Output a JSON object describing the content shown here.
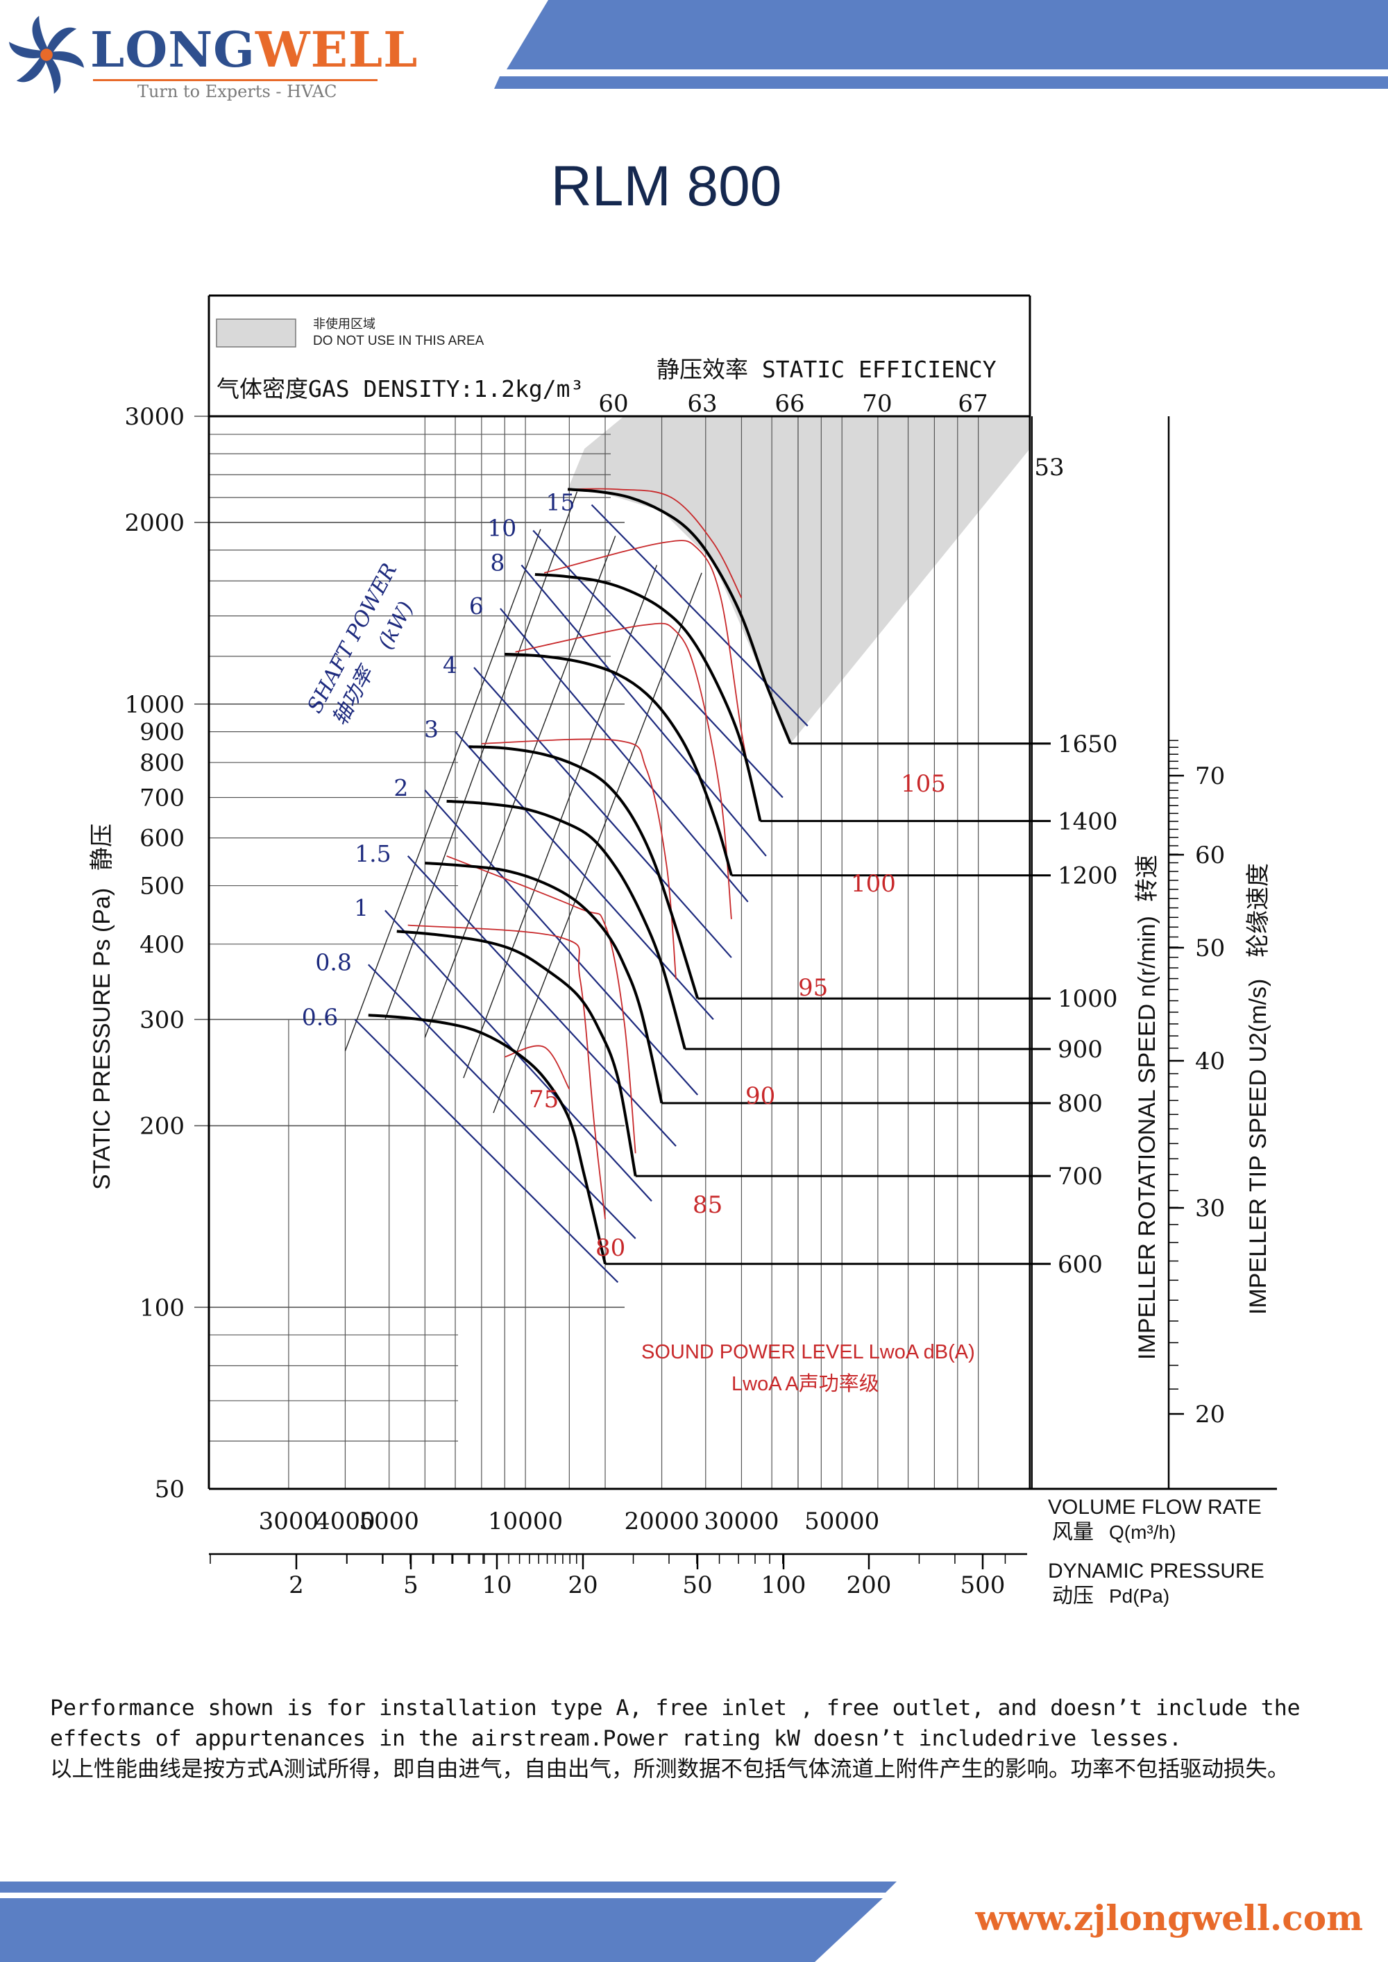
{
  "brand": {
    "name_part1": "LONG",
    "name_part2": "WELL",
    "tagline": "Turn to Experts - HVAC",
    "website": "www.zjlongwell.com",
    "primary_color": "#2e4f8e",
    "accent_color": "#e86a2a",
    "band_color": "#5b7fc4"
  },
  "page_title": "RLM 800",
  "legend": {
    "area_label_cn": "非使用区域",
    "area_label_en": "DO NOT USE IN THIS AREA",
    "gas_density": "气体密度GAS DENSITY:1.2kg/m³"
  },
  "footnote": {
    "en": "Performance shown is for installation type A, free inlet , free outlet, and doesn’t include the effects of appurtenances in the airstream.Power rating kW doesn’t includedrive lesses.",
    "cn": "以上性能曲线是按方式A测试所得，即自由进气，自由出气，所测数据不包括气体流道上附件产生的影响。功率不包括驱动损失。"
  },
  "chart_data": {
    "type": "line",
    "x_scale": "log",
    "y_scale": "log",
    "xlim": [
      2000,
      130000
    ],
    "ylim": [
      50,
      3000
    ],
    "xlabel": "VOLUME FLOW RATE",
    "xlabel_cn": "风量",
    "xlabel_unit": "Q(m³/h)",
    "x_ticks": [
      3000,
      4000,
      5000,
      10000,
      20000,
      30000,
      50000
    ],
    "ylabel": "STATIC PRESSURE Ps (Pa)",
    "ylabel_cn": "静压",
    "y_ticks": [
      50,
      100,
      200,
      300,
      400,
      500,
      600,
      700,
      800,
      900,
      1000,
      2000,
      3000
    ],
    "dynamic_pressure": {
      "label": "DYNAMIC PRESSURE",
      "label_cn": "动压",
      "unit": "Pd(Pa)",
      "ticks": [
        2,
        5,
        10,
        20,
        50,
        100,
        200,
        500
      ]
    },
    "static_efficiency": {
      "label": "静压效率 STATIC EFFICIENCY",
      "values": [
        60,
        63,
        66,
        70,
        67,
        53
      ]
    },
    "shaft_power": {
      "label": "SHAFT POWER",
      "label_cn": "轴功率",
      "unit": "(kW)",
      "values": [
        0.6,
        0.8,
        1,
        1.5,
        2,
        3,
        4,
        6,
        8,
        10,
        15
      ]
    },
    "speed_axis": {
      "label": "IMPELLER ROTATIONAL SPEED n(r/min)",
      "label_cn": "转速",
      "values": [
        1650,
        1400,
        1200,
        1000,
        900,
        800,
        700,
        600
      ]
    },
    "tip_speed_axis": {
      "label": "IMPELLER TIP SPEED U2(m/s)",
      "label_cn": "轮缘速度",
      "ticks": [
        70,
        60,
        50,
        40,
        30,
        20
      ]
    },
    "sound_power": {
      "label": "SOUND POWER LEVEL LwoA dB(A)",
      "label_cn": "LwoA  A声功率级",
      "values": [
        80,
        85,
        75,
        90,
        95,
        100,
        105
      ]
    },
    "series": [
      {
        "rpm": 1650,
        "points": [
          [
            12400,
            2270
          ],
          [
            14500,
            2250
          ],
          [
            17000,
            2200
          ],
          [
            20000,
            2090
          ],
          [
            23000,
            1940
          ],
          [
            26000,
            1720
          ],
          [
            30000,
            1400
          ],
          [
            34000,
            1080
          ],
          [
            38500,
            860
          ]
        ]
      },
      {
        "rpm": 1400,
        "points": [
          [
            10500,
            1640
          ],
          [
            12000,
            1630
          ],
          [
            14500,
            1600
          ],
          [
            17000,
            1540
          ],
          [
            20000,
            1440
          ],
          [
            23000,
            1300
          ],
          [
            26500,
            1080
          ],
          [
            30000,
            860
          ],
          [
            33000,
            640
          ]
        ]
      },
      {
        "rpm": 1200,
        "points": [
          [
            9000,
            1210
          ],
          [
            11000,
            1200
          ],
          [
            13500,
            1170
          ],
          [
            16000,
            1120
          ],
          [
            18500,
            1040
          ],
          [
            21000,
            930
          ],
          [
            23500,
            800
          ],
          [
            26500,
            630
          ],
          [
            28500,
            520
          ]
        ]
      },
      {
        "rpm": 1000,
        "points": [
          [
            7500,
            850
          ],
          [
            9000,
            845
          ],
          [
            11000,
            825
          ],
          [
            13000,
            790
          ],
          [
            15000,
            740
          ],
          [
            17000,
            660
          ],
          [
            19000,
            560
          ],
          [
            21000,
            450
          ],
          [
            24000,
            325
          ]
        ]
      },
      {
        "rpm": 900,
        "points": [
          [
            6700,
            690
          ],
          [
            8000,
            685
          ],
          [
            10000,
            670
          ],
          [
            12000,
            640
          ],
          [
            14000,
            600
          ],
          [
            16000,
            530
          ],
          [
            18000,
            450
          ],
          [
            20000,
            370
          ],
          [
            22500,
            268
          ]
        ]
      },
      {
        "rpm": 800,
        "points": [
          [
            6000,
            545
          ],
          [
            7200,
            540
          ],
          [
            9000,
            530
          ],
          [
            11000,
            505
          ],
          [
            13000,
            470
          ],
          [
            15000,
            420
          ],
          [
            16500,
            370
          ],
          [
            18000,
            310
          ],
          [
            20000,
            218
          ]
        ]
      },
      {
        "rpm": 700,
        "points": [
          [
            5200,
            420
          ],
          [
            6300,
            415
          ],
          [
            8000,
            405
          ],
          [
            9500,
            390
          ],
          [
            11000,
            365
          ],
          [
            13000,
            330
          ],
          [
            14500,
            290
          ],
          [
            16000,
            240
          ],
          [
            17500,
            165
          ]
        ]
      },
      {
        "rpm": 600,
        "points": [
          [
            4500,
            305
          ],
          [
            5400,
            302
          ],
          [
            6800,
            295
          ],
          [
            8000,
            285
          ],
          [
            9500,
            265
          ],
          [
            11000,
            240
          ],
          [
            12500,
            205
          ],
          [
            13500,
            165
          ],
          [
            15000,
            118
          ]
        ]
      }
    ],
    "system_lines": [
      {
        "points": [
          [
            4000,
            266
          ],
          [
            10800,
            1950
          ]
        ]
      },
      {
        "points": [
          [
            4900,
            300
          ],
          [
            13000,
            2250
          ]
        ]
      },
      {
        "points": [
          [
            6000,
            280
          ],
          [
            15800,
            1900
          ]
        ]
      },
      {
        "points": [
          [
            7300,
            240
          ],
          [
            19500,
            1700
          ]
        ]
      },
      {
        "points": [
          [
            8500,
            210
          ],
          [
            24500,
            1650
          ]
        ]
      }
    ],
    "power_lines": [
      {
        "kw": 15,
        "points": [
          [
            14000,
            2140
          ],
          [
            42000,
            920
          ]
        ]
      },
      {
        "kw": 10,
        "points": [
          [
            10400,
            1940
          ],
          [
            37000,
            700
          ]
        ]
      },
      {
        "kw": 8,
        "points": [
          [
            9800,
            1700
          ],
          [
            34000,
            560
          ]
        ]
      },
      {
        "kw": 6,
        "points": [
          [
            8800,
            1440
          ],
          [
            31000,
            470
          ]
        ]
      },
      {
        "kw": 4,
        "points": [
          [
            7700,
            1150
          ],
          [
            28500,
            380
          ]
        ]
      },
      {
        "kw": 3,
        "points": [
          [
            7000,
            900
          ],
          [
            26000,
            300
          ]
        ]
      },
      {
        "kw": 2,
        "points": [
          [
            6000,
            720
          ],
          [
            24000,
            225
          ]
        ]
      },
      {
        "kw": 1.5,
        "points": [
          [
            5500,
            560
          ],
          [
            21500,
            185
          ]
        ]
      },
      {
        "kw": 1,
        "points": [
          [
            4900,
            455
          ],
          [
            19000,
            150
          ]
        ]
      },
      {
        "kw": 0.8,
        "points": [
          [
            4500,
            370
          ],
          [
            17500,
            130
          ]
        ]
      },
      {
        "kw": 0.6,
        "points": [
          [
            4200,
            300
          ],
          [
            16000,
            110
          ]
        ]
      }
    ],
    "sound_curves": [
      {
        "db": 105,
        "points": [
          [
            12400,
            2270
          ],
          [
            16000,
            2270
          ],
          [
            21000,
            2200
          ],
          [
            26000,
            1850
          ],
          [
            30000,
            1500
          ]
        ]
      },
      {
        "db": 100,
        "points": [
          [
            11000,
            1650
          ],
          [
            20000,
            1850
          ],
          [
            24000,
            1810
          ],
          [
            27000,
            1500
          ],
          [
            30000,
            900
          ],
          [
            32000,
            700
          ]
        ]
      },
      {
        "db": 95,
        "points": [
          [
            9500,
            1220
          ],
          [
            18000,
            1350
          ],
          [
            21500,
            1320
          ],
          [
            24000,
            1100
          ],
          [
            27000,
            700
          ],
          [
            28500,
            440
          ]
        ]
      },
      {
        "db": 90,
        "points": [
          [
            8000,
            860
          ],
          [
            16000,
            870
          ],
          [
            18500,
            780
          ],
          [
            20500,
            540
          ],
          [
            21500,
            350
          ]
        ]
      },
      {
        "db": 85,
        "points": [
          [
            6700,
            560
          ],
          [
            13000,
            460
          ],
          [
            15000,
            430
          ],
          [
            16500,
            300
          ],
          [
            17500,
            180
          ]
        ]
      },
      {
        "db": 80,
        "points": [
          [
            5500,
            430
          ],
          [
            12000,
            410
          ],
          [
            13200,
            350
          ],
          [
            14200,
            200
          ],
          [
            15000,
            140
          ]
        ]
      },
      {
        "db": 75,
        "points": [
          [
            9000,
            260
          ],
          [
            11000,
            270
          ],
          [
            12500,
            230
          ]
        ]
      }
    ],
    "no_use_area": {
      "points": [
        [
          16500,
          3000
        ],
        [
          130000,
          3000
        ],
        [
          130000,
          2650
        ],
        [
          38500,
          860
        ],
        [
          34000,
          1080
        ],
        [
          26000,
          1720
        ],
        [
          20000,
          2090
        ],
        [
          14500,
          2250
        ],
        [
          12400,
          2270
        ],
        [
          13500,
          2650
        ]
      ]
    }
  }
}
